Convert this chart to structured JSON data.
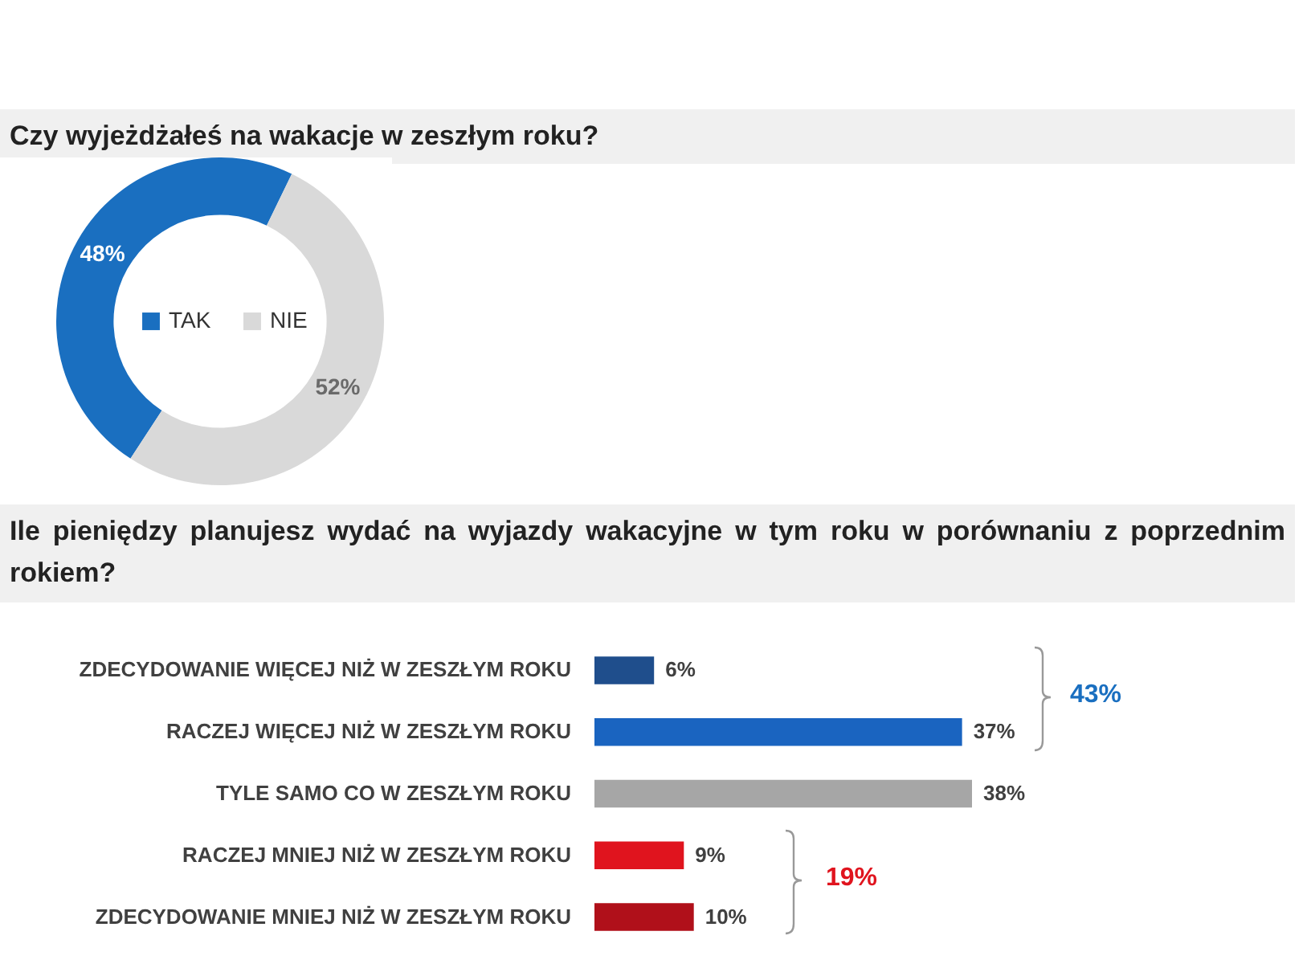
{
  "chart_data": [
    {
      "type": "donut",
      "title": "Czy wyjeżdżałeś na wakacje w zeszłym roku?",
      "categories": [
        "TAK",
        "NIE"
      ],
      "values": [
        48,
        52
      ],
      "colors": [
        "#1a6fc0",
        "#d9d9d9"
      ],
      "data_labels": true,
      "value_labels": [
        "48%",
        "52%"
      ],
      "legend": "center"
    },
    {
      "type": "bar",
      "orientation": "horizontal",
      "title": "Ile pieniędzy planujesz wydać na wyjazdy wakacyjne w tym roku w porównaniu z poprzednim rokiem?",
      "categories": [
        "ZDECYDOWANIE WIĘCEJ NIŻ W ZESZŁYM ROKU",
        "RACZEJ WIĘCEJ NIŻ W ZESZŁYM ROKU",
        "TYLE SAMO CO W ZESZŁYM ROKU",
        "RACZEJ MNIEJ NIŻ W ZESZŁYM ROKU",
        "ZDECYDOWANIE MNIEJ NIŻ W ZESZŁYM ROKU"
      ],
      "values": [
        6,
        37,
        38,
        9,
        10
      ],
      "colors": [
        "#1f4e8c",
        "#1a64c0",
        "#a6a6a6",
        "#e0141e",
        "#b0101a"
      ],
      "value_labels": [
        "6%",
        "37%",
        "38%",
        "9%",
        "10%"
      ],
      "annotations": [
        "43%",
        "19%"
      ]
    }
  ]
}
